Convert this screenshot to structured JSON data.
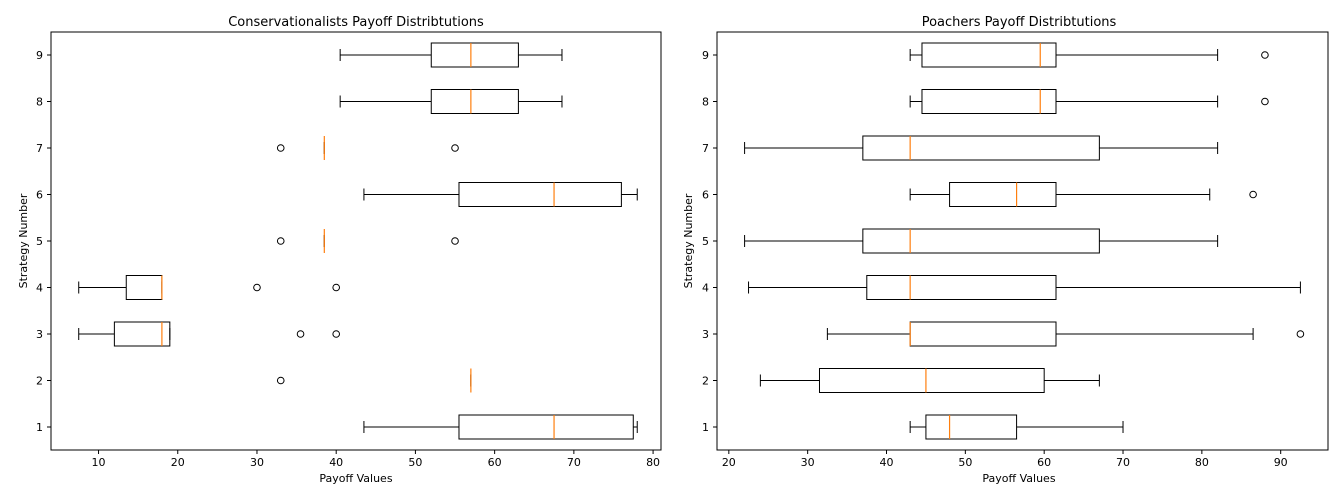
{
  "chart_data": [
    {
      "type": "boxplot",
      "orientation": "horizontal",
      "title": "Conservationalists Payoff Distribtutions",
      "xlabel": "Payoff Values",
      "ylabel": "Strategy Number",
      "xlim": [
        4,
        81
      ],
      "xticks": [
        10,
        20,
        30,
        40,
        50,
        60,
        70,
        80
      ],
      "categories": [
        "1",
        "2",
        "3",
        "4",
        "5",
        "6",
        "7",
        "8",
        "9"
      ],
      "boxes": [
        {
          "label": "1",
          "whislo": 43.5,
          "q1": 55.5,
          "med": 67.5,
          "q3": 77.5,
          "whishi": 78,
          "fliers": []
        },
        {
          "label": "2",
          "whislo": 57,
          "q1": 57,
          "med": 57,
          "q3": 57,
          "whishi": 57,
          "fliers": [
            33
          ]
        },
        {
          "label": "3",
          "whislo": 7.5,
          "q1": 12,
          "med": 18,
          "q3": 19,
          "whishi": 19,
          "fliers": [
            35.5,
            40
          ]
        },
        {
          "label": "4",
          "whislo": 7.5,
          "q1": 13.5,
          "med": 18,
          "q3": 18,
          "whishi": 18,
          "fliers": [
            30,
            40
          ]
        },
        {
          "label": "5",
          "whislo": 38.5,
          "q1": 38.5,
          "med": 38.5,
          "q3": 38.5,
          "whishi": 38.5,
          "fliers": [
            33,
            55
          ]
        },
        {
          "label": "6",
          "whislo": 43.5,
          "q1": 55.5,
          "med": 67.5,
          "q3": 76,
          "whishi": 78,
          "fliers": []
        },
        {
          "label": "7",
          "whislo": 38.5,
          "q1": 38.5,
          "med": 38.5,
          "q3": 38.5,
          "whishi": 38.5,
          "fliers": [
            33,
            55
          ]
        },
        {
          "label": "8",
          "whislo": 40.5,
          "q1": 52,
          "med": 57,
          "q3": 63,
          "whishi": 68.5,
          "fliers": []
        },
        {
          "label": "9",
          "whislo": 40.5,
          "q1": 52,
          "med": 57,
          "q3": 63,
          "whishi": 68.5,
          "fliers": []
        }
      ]
    },
    {
      "type": "boxplot",
      "orientation": "horizontal",
      "title": "Poachers Payoff Distribtutions",
      "xlabel": "Payoff Values",
      "ylabel": "Strategy Number",
      "xlim": [
        18.5,
        96
      ],
      "xticks": [
        20,
        30,
        40,
        50,
        60,
        70,
        80,
        90
      ],
      "categories": [
        "1",
        "2",
        "3",
        "4",
        "5",
        "6",
        "7",
        "8",
        "9"
      ],
      "boxes": [
        {
          "label": "1",
          "whislo": 43,
          "q1": 45,
          "med": 48,
          "q3": 56.5,
          "whishi": 70,
          "fliers": []
        },
        {
          "label": "2",
          "whislo": 24,
          "q1": 31.5,
          "med": 45,
          "q3": 60,
          "whishi": 67,
          "fliers": []
        },
        {
          "label": "3",
          "whislo": 32.5,
          "q1": 43,
          "med": 43,
          "q3": 61.5,
          "whishi": 86.5,
          "fliers": [
            92.5
          ]
        },
        {
          "label": "4",
          "whislo": 22.5,
          "q1": 37.5,
          "med": 43,
          "q3": 61.5,
          "whishi": 92.5,
          "fliers": []
        },
        {
          "label": "5",
          "whislo": 22,
          "q1": 37,
          "med": 43,
          "q3": 67,
          "whishi": 82,
          "fliers": []
        },
        {
          "label": "6",
          "whislo": 43,
          "q1": 48,
          "med": 56.5,
          "q3": 61.5,
          "whishi": 81,
          "fliers": [
            86.5
          ]
        },
        {
          "label": "7",
          "whislo": 22,
          "q1": 37,
          "med": 43,
          "q3": 67,
          "whishi": 82,
          "fliers": []
        },
        {
          "label": "8",
          "whislo": 43,
          "q1": 44.5,
          "med": 59.5,
          "q3": 61.5,
          "whishi": 82,
          "fliers": [
            88
          ]
        },
        {
          "label": "9",
          "whislo": 43,
          "q1": 44.5,
          "med": 59.5,
          "q3": 61.5,
          "whishi": 82,
          "fliers": [
            88
          ]
        }
      ]
    }
  ],
  "style": {
    "median_color": "#ff7f0e",
    "box_color": "#000000",
    "background": "#ffffff"
  }
}
